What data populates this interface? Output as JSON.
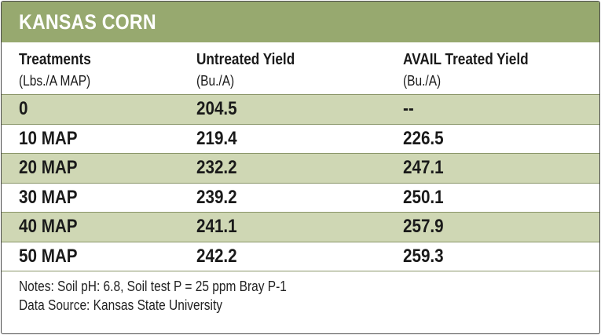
{
  "title": "KANSAS CORN",
  "columns": [
    {
      "label": "Treatments",
      "unit": "(Lbs./A MAP)"
    },
    {
      "label": "Untreated Yield",
      "unit": "(Bu./A)"
    },
    {
      "label": "AVAIL Treated Yield",
      "unit": "(Bu./A)"
    }
  ],
  "rows": [
    {
      "treatment": "0",
      "untreated": "204.5",
      "avail": "--"
    },
    {
      "treatment": "10 MAP",
      "untreated": "219.4",
      "avail": "226.5"
    },
    {
      "treatment": "20 MAP",
      "untreated": "232.2",
      "avail": "247.1"
    },
    {
      "treatment": "30 MAP",
      "untreated": "239.2",
      "avail": "250.1"
    },
    {
      "treatment": "40 MAP",
      "untreated": "241.1",
      "avail": "257.9"
    },
    {
      "treatment": "50 MAP",
      "untreated": "242.2",
      "avail": "259.3"
    }
  ],
  "notes": {
    "line1": "Notes: Soil pH: 6.8, Soil test P = 25 ppm Bray P-1",
    "line2": "Data Source: Kansas State University"
  },
  "colors": {
    "title_bar": "#97a96f",
    "row_shade": "#cfd7b4"
  }
}
